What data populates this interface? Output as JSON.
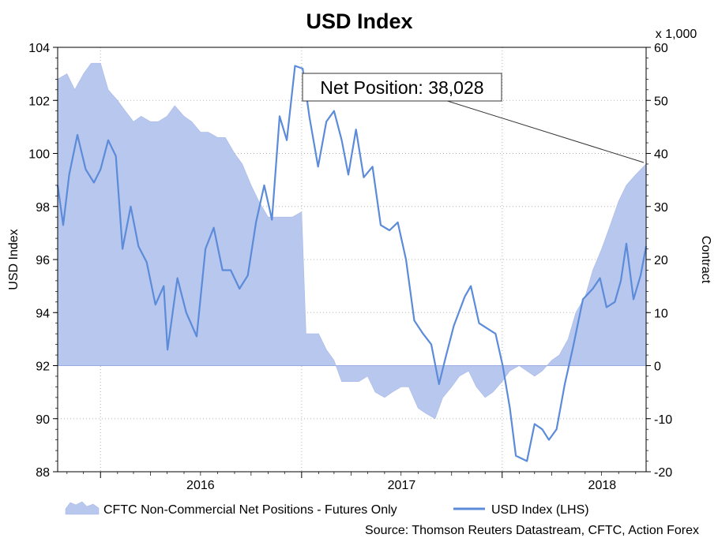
{
  "chart_data": {
    "type": "line",
    "title": "USD Index",
    "ylabel_left": "USD Index",
    "ylabel_right": "Contract",
    "right_axis_unit": "x 1,000",
    "ylim_left": [
      88,
      104
    ],
    "ylim_right": [
      -20,
      60
    ],
    "y_ticks_left": [
      "88",
      "90",
      "92",
      "94",
      "96",
      "98",
      "100",
      "102",
      "104"
    ],
    "y_ticks_right": [
      "-20",
      "-10",
      "0",
      "10",
      "20",
      "30",
      "40",
      "50",
      "60"
    ],
    "x_tick_labels": [
      "2016",
      "2017",
      "2018"
    ],
    "xlim": [
      "2015-10-15",
      "2018-09-20"
    ],
    "grid": true,
    "legend_position": "bottom",
    "annotation": "Net Position: 38,028",
    "source": "Source: Thomson Reuters Datastream, CFTC, Action Forex",
    "series": [
      {
        "name": "CFTC Non-Commercial Net Positions - Futures Only",
        "style": "area",
        "axis": "right",
        "color": "#b8c7ee",
        "points": [
          [
            "2015-10-15",
            54
          ],
          [
            "2015-11-01",
            55
          ],
          [
            "2015-11-15",
            52
          ],
          [
            "2015-12-01",
            55
          ],
          [
            "2015-12-15",
            57
          ],
          [
            "2016-01-01",
            57
          ],
          [
            "2016-01-15",
            52
          ],
          [
            "2016-02-01",
            50
          ],
          [
            "2016-02-15",
            48
          ],
          [
            "2016-03-01",
            46
          ],
          [
            "2016-03-15",
            47
          ],
          [
            "2016-04-01",
            46
          ],
          [
            "2016-04-15",
            46
          ],
          [
            "2016-05-01",
            47
          ],
          [
            "2016-05-15",
            49
          ],
          [
            "2016-06-01",
            47
          ],
          [
            "2016-06-15",
            46
          ],
          [
            "2016-07-01",
            44
          ],
          [
            "2016-07-15",
            44
          ],
          [
            "2016-08-01",
            43
          ],
          [
            "2016-08-15",
            43
          ],
          [
            "2016-09-01",
            40
          ],
          [
            "2016-09-15",
            38
          ],
          [
            "2016-10-01",
            34
          ],
          [
            "2016-10-15",
            31
          ],
          [
            "2016-11-01",
            28
          ],
          [
            "2016-11-15",
            28
          ],
          [
            "2016-12-01",
            28
          ],
          [
            "2016-12-15",
            28
          ],
          [
            "2017-01-01",
            29
          ],
          [
            "2017-01-09",
            6
          ],
          [
            "2017-02-01",
            6
          ],
          [
            "2017-02-15",
            3
          ],
          [
            "2017-03-01",
            1
          ],
          [
            "2017-03-15",
            -3
          ],
          [
            "2017-04-01",
            -3
          ],
          [
            "2017-04-15",
            -3
          ],
          [
            "2017-05-01",
            -2
          ],
          [
            "2017-05-15",
            -5
          ],
          [
            "2017-06-01",
            -6
          ],
          [
            "2017-06-15",
            -5
          ],
          [
            "2017-07-01",
            -4
          ],
          [
            "2017-07-15",
            -4
          ],
          [
            "2017-08-01",
            -8
          ],
          [
            "2017-08-15",
            -9
          ],
          [
            "2017-09-01",
            -10
          ],
          [
            "2017-09-15",
            -6
          ],
          [
            "2017-10-01",
            -4
          ],
          [
            "2017-10-15",
            -2
          ],
          [
            "2017-11-01",
            -1
          ],
          [
            "2017-11-15",
            -4
          ],
          [
            "2017-12-01",
            -6
          ],
          [
            "2017-12-15",
            -5
          ],
          [
            "2018-01-01",
            -3
          ],
          [
            "2018-01-15",
            -1
          ],
          [
            "2018-02-01",
            0
          ],
          [
            "2018-02-15",
            -1
          ],
          [
            "2018-03-01",
            -2
          ],
          [
            "2018-03-15",
            -1
          ],
          [
            "2018-04-01",
            1
          ],
          [
            "2018-04-15",
            2
          ],
          [
            "2018-05-01",
            5
          ],
          [
            "2018-05-15",
            10
          ],
          [
            "2018-06-01",
            13
          ],
          [
            "2018-06-15",
            18
          ],
          [
            "2018-07-01",
            22
          ],
          [
            "2018-07-15",
            26
          ],
          [
            "2018-08-01",
            31
          ],
          [
            "2018-08-15",
            34
          ],
          [
            "2018-09-01",
            36
          ],
          [
            "2018-09-20",
            38.028
          ]
        ]
      },
      {
        "name": "USD Index (LHS)",
        "style": "line",
        "axis": "left",
        "color": "#5b8bd9",
        "points": [
          [
            "2015-10-15",
            98.8
          ],
          [
            "2015-10-25",
            97.3
          ],
          [
            "2015-11-05",
            99.2
          ],
          [
            "2015-11-20",
            100.7
          ],
          [
            "2015-12-05",
            99.4
          ],
          [
            "2015-12-20",
            98.9
          ],
          [
            "2016-01-01",
            99.4
          ],
          [
            "2016-01-15",
            100.5
          ],
          [
            "2016-01-29",
            99.9
          ],
          [
            "2016-02-10",
            96.4
          ],
          [
            "2016-02-25",
            98.0
          ],
          [
            "2016-03-10",
            96.5
          ],
          [
            "2016-03-25",
            95.9
          ],
          [
            "2016-04-10",
            94.3
          ],
          [
            "2016-04-25",
            95.0
          ],
          [
            "2016-05-02",
            92.6
          ],
          [
            "2016-05-20",
            95.3
          ],
          [
            "2016-06-05",
            94.0
          ],
          [
            "2016-06-24",
            93.1
          ],
          [
            "2016-07-10",
            96.4
          ],
          [
            "2016-07-25",
            97.2
          ],
          [
            "2016-08-10",
            95.6
          ],
          [
            "2016-08-25",
            95.6
          ],
          [
            "2016-09-10",
            94.9
          ],
          [
            "2016-09-25",
            95.4
          ],
          [
            "2016-10-10",
            97.4
          ],
          [
            "2016-10-25",
            98.8
          ],
          [
            "2016-11-08",
            97.5
          ],
          [
            "2016-11-22",
            101.4
          ],
          [
            "2016-12-05",
            100.5
          ],
          [
            "2016-12-20",
            103.3
          ],
          [
            "2017-01-03",
            103.2
          ],
          [
            "2017-01-15",
            101.4
          ],
          [
            "2017-01-31",
            99.5
          ],
          [
            "2017-02-15",
            101.2
          ],
          [
            "2017-03-01",
            101.6
          ],
          [
            "2017-03-15",
            100.5
          ],
          [
            "2017-03-27",
            99.2
          ],
          [
            "2017-04-10",
            100.9
          ],
          [
            "2017-04-24",
            99.1
          ],
          [
            "2017-05-10",
            99.5
          ],
          [
            "2017-05-25",
            97.3
          ],
          [
            "2017-06-10",
            97.1
          ],
          [
            "2017-06-25",
            97.4
          ],
          [
            "2017-07-10",
            96.0
          ],
          [
            "2017-07-25",
            93.7
          ],
          [
            "2017-08-10",
            93.2
          ],
          [
            "2017-08-25",
            92.8
          ],
          [
            "2017-09-08",
            91.3
          ],
          [
            "2017-09-20",
            92.3
          ],
          [
            "2017-10-05",
            93.5
          ],
          [
            "2017-10-25",
            94.6
          ],
          [
            "2017-11-05",
            95.0
          ],
          [
            "2017-11-20",
            93.6
          ],
          [
            "2017-12-05",
            93.4
          ],
          [
            "2017-12-20",
            93.2
          ],
          [
            "2018-01-02",
            92.0
          ],
          [
            "2018-01-15",
            90.4
          ],
          [
            "2018-01-26",
            88.6
          ],
          [
            "2018-02-15",
            88.4
          ],
          [
            "2018-03-01",
            89.8
          ],
          [
            "2018-03-15",
            89.6
          ],
          [
            "2018-03-27",
            89.2
          ],
          [
            "2018-04-10",
            89.6
          ],
          [
            "2018-04-25",
            91.3
          ],
          [
            "2018-05-10",
            92.7
          ],
          [
            "2018-05-28",
            94.5
          ],
          [
            "2018-06-15",
            94.9
          ],
          [
            "2018-06-28",
            95.3
          ],
          [
            "2018-07-10",
            94.2
          ],
          [
            "2018-07-25",
            94.4
          ],
          [
            "2018-08-05",
            95.2
          ],
          [
            "2018-08-15",
            96.6
          ],
          [
            "2018-08-28",
            94.5
          ],
          [
            "2018-09-10",
            95.4
          ],
          [
            "2018-09-20",
            96.5
          ]
        ]
      }
    ]
  }
}
